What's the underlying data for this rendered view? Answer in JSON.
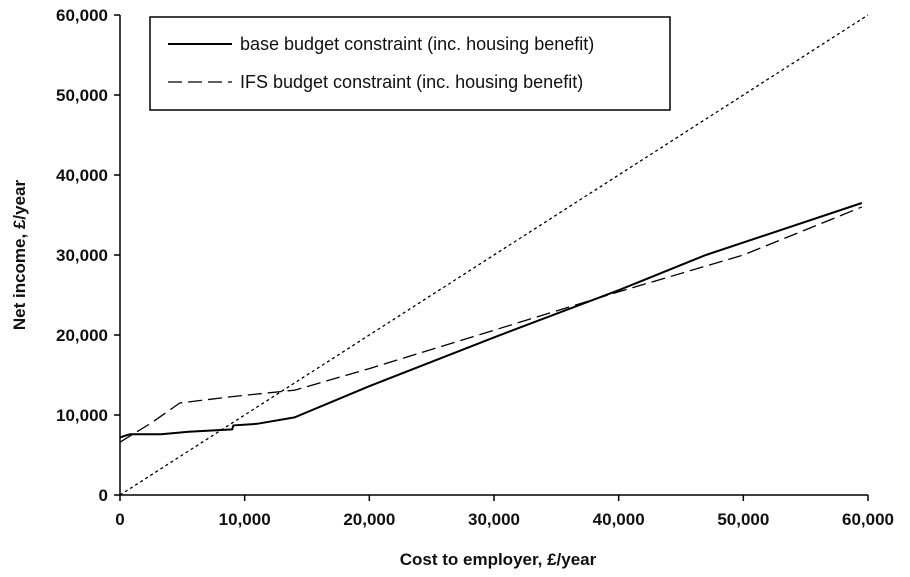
{
  "chart_data": {
    "type": "line",
    "title": "",
    "xlabel": "Cost to employer, £/year",
    "ylabel": "Net income, £/year",
    "xlim": [
      0,
      60000
    ],
    "ylim": [
      0,
      60000
    ],
    "x_ticks": [
      {
        "value": 0,
        "label": "0"
      },
      {
        "value": 10000,
        "label": "10,000"
      },
      {
        "value": 20000,
        "label": "20,000"
      },
      {
        "value": 30000,
        "label": "30,000"
      },
      {
        "value": 40000,
        "label": "40,000"
      },
      {
        "value": 50000,
        "label": "50,000"
      },
      {
        "value": 60000,
        "label": "60,000"
      }
    ],
    "y_ticks": [
      {
        "value": 0,
        "label": "0"
      },
      {
        "value": 10000,
        "label": "10,000"
      },
      {
        "value": 20000,
        "label": "20,000"
      },
      {
        "value": 30000,
        "label": "30,000"
      },
      {
        "value": 40000,
        "label": "40,000"
      },
      {
        "value": 50000,
        "label": "50,000"
      },
      {
        "value": 60000,
        "label": "60,000"
      }
    ],
    "grid": false,
    "legend_position": "top-left",
    "series": [
      {
        "name": "base budget constraint (inc. housing benefit)",
        "style": "solid",
        "color": "#000000",
        "points": [
          [
            0,
            7200
          ],
          [
            800,
            7600
          ],
          [
            3300,
            7600
          ],
          [
            5500,
            7900
          ],
          [
            9000,
            8200
          ],
          [
            9100,
            8700
          ],
          [
            11000,
            8900
          ],
          [
            14000,
            9700
          ],
          [
            20000,
            13600
          ],
          [
            30000,
            19700
          ],
          [
            40000,
            25600
          ],
          [
            47000,
            30000
          ],
          [
            59500,
            36500
          ]
        ]
      },
      {
        "name": "IFS budget constraint (inc. housing benefit)",
        "style": "dashed",
        "color": "#000000",
        "points": [
          [
            0,
            6600
          ],
          [
            2500,
            9000
          ],
          [
            4800,
            11500
          ],
          [
            9000,
            12300
          ],
          [
            14000,
            13100
          ],
          [
            20000,
            15800
          ],
          [
            30000,
            20600
          ],
          [
            40000,
            25400
          ],
          [
            50000,
            30000
          ],
          [
            59500,
            36000
          ]
        ]
      },
      {
        "name": "",
        "style": "dotted",
        "color": "#000000",
        "points": [
          [
            0,
            0
          ],
          [
            60000,
            60000
          ]
        ]
      }
    ]
  }
}
